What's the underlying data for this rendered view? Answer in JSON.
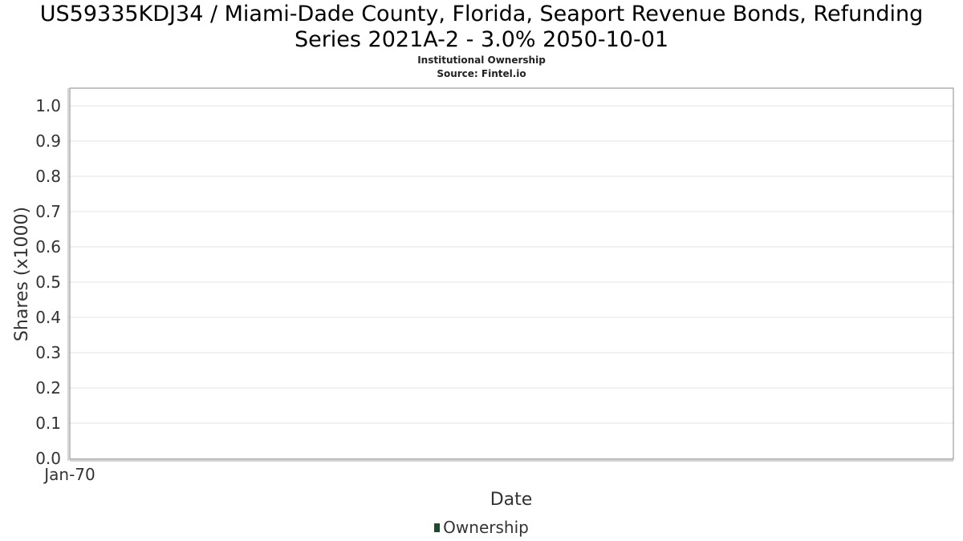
{
  "header": {
    "title_line_1": "US59335KDJ34 / Miami-Dade County, Florida, Seaport Revenue Bonds, Refunding",
    "title_line_2": "Series 2021A-2 - 3.0% 2050-10-01",
    "subtitle": "Institutional Ownership",
    "source": "Source: Fintel.io"
  },
  "colors": {
    "series": "#1a4d2e",
    "grid": "#e3e3e3",
    "frame": "#888888"
  },
  "chart_data": {
    "type": "area",
    "title": "US59335KDJ34 / Miami-Dade County, Florida, Seaport Revenue Bonds, Refunding Series 2021A-2 - 3.0% 2050-10-01",
    "subtitle": "Institutional Ownership",
    "xlabel": "Date",
    "ylabel": "Shares (x1000)",
    "x_ticks": [
      "Jan-70"
    ],
    "y_ticks": [
      0.0,
      0.1,
      0.2,
      0.3,
      0.4,
      0.5,
      0.6,
      0.7,
      0.8,
      0.9,
      1.0
    ],
    "y_tick_labels": [
      "0.0",
      "0.1",
      "0.2",
      "0.3",
      "0.4",
      "0.5",
      "0.6",
      "0.7",
      "0.8",
      "0.9",
      "1.0"
    ],
    "ylim": [
      0,
      1.05
    ],
    "grid": true,
    "legend_position": "bottom-center",
    "series": [
      {
        "name": "Ownership",
        "x": [],
        "values": []
      }
    ]
  },
  "legend": {
    "label": "Ownership"
  }
}
